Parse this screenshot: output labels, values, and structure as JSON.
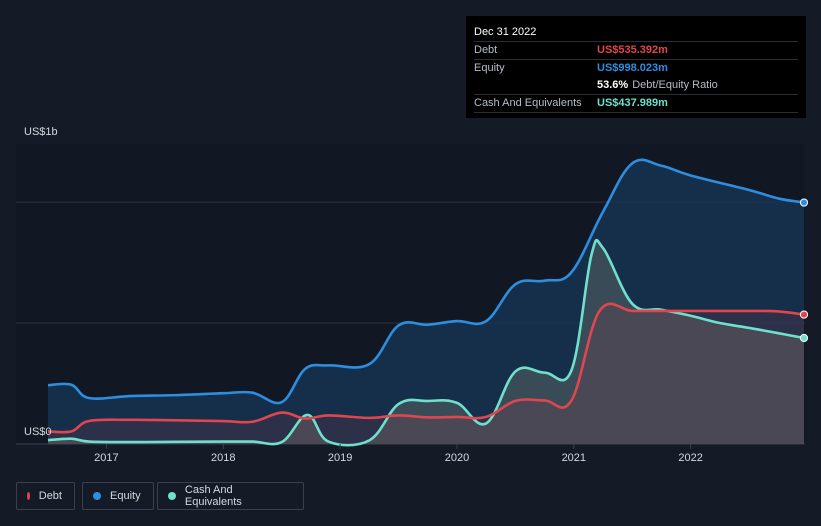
{
  "chart_data": {
    "type": "area",
    "ylabel_top": "US$1b",
    "ylabel_bottom": "US$0",
    "ylim": [
      0,
      1240
    ],
    "xlim": [
      2016.5,
      2022.97
    ],
    "x_ticks": [
      {
        "value": 2017.0,
        "label": "2017"
      },
      {
        "value": 2018.0,
        "label": "2018"
      },
      {
        "value": 2019.0,
        "label": "2019"
      },
      {
        "value": 2020.0,
        "label": "2020"
      },
      {
        "value": 2021.0,
        "label": "2021"
      },
      {
        "value": 2022.0,
        "label": "2022"
      }
    ],
    "gridlines": [
      500,
      1000
    ],
    "series": [
      {
        "name": "Equity",
        "color": "#2d8ee0",
        "fill": "#163250",
        "points": [
          [
            2016.5,
            243
          ],
          [
            2016.7,
            245
          ],
          [
            2016.85,
            190
          ],
          [
            2017.2,
            198
          ],
          [
            2017.6,
            202
          ],
          [
            2018.0,
            210
          ],
          [
            2018.25,
            212
          ],
          [
            2018.5,
            173
          ],
          [
            2018.7,
            310
          ],
          [
            2018.9,
            325
          ],
          [
            2019.25,
            330
          ],
          [
            2019.5,
            490
          ],
          [
            2019.75,
            493
          ],
          [
            2020.0,
            508
          ],
          [
            2020.25,
            508
          ],
          [
            2020.5,
            660
          ],
          [
            2020.75,
            675
          ],
          [
            2020.98,
            710
          ],
          [
            2021.25,
            960
          ],
          [
            2021.5,
            1160
          ],
          [
            2021.75,
            1150
          ],
          [
            2022.0,
            1110
          ],
          [
            2022.5,
            1050
          ],
          [
            2022.75,
            1015
          ],
          [
            2022.97,
            998
          ]
        ]
      },
      {
        "name": "Cash And Equivalents",
        "color": "#6ee0cc",
        "fill": "#3f5059",
        "points": [
          [
            2016.5,
            16
          ],
          [
            2016.7,
            22
          ],
          [
            2016.85,
            10
          ],
          [
            2017.2,
            8
          ],
          [
            2017.6,
            9
          ],
          [
            2018.0,
            10
          ],
          [
            2018.25,
            10
          ],
          [
            2018.5,
            8
          ],
          [
            2018.72,
            120
          ],
          [
            2018.9,
            10
          ],
          [
            2019.25,
            15
          ],
          [
            2019.5,
            165
          ],
          [
            2019.75,
            178
          ],
          [
            2020.0,
            170
          ],
          [
            2020.25,
            85
          ],
          [
            2020.5,
            300
          ],
          [
            2020.75,
            295
          ],
          [
            2020.98,
            305
          ],
          [
            2021.15,
            780
          ],
          [
            2021.25,
            810
          ],
          [
            2021.5,
            580
          ],
          [
            2021.75,
            555
          ],
          [
            2022.0,
            530
          ],
          [
            2022.25,
            500
          ],
          [
            2022.5,
            480
          ],
          [
            2022.75,
            458
          ],
          [
            2022.97,
            438
          ]
        ]
      },
      {
        "name": "Debt",
        "color": "#e0464f",
        "fill": "rgba(150,60,70,0.18)",
        "points": [
          [
            2016.5,
            52
          ],
          [
            2016.7,
            52
          ],
          [
            2016.85,
            95
          ],
          [
            2017.2,
            100
          ],
          [
            2017.6,
            98
          ],
          [
            2018.0,
            95
          ],
          [
            2018.25,
            92
          ],
          [
            2018.5,
            130
          ],
          [
            2018.7,
            105
          ],
          [
            2018.9,
            118
          ],
          [
            2019.25,
            108
          ],
          [
            2019.5,
            118
          ],
          [
            2019.75,
            110
          ],
          [
            2020.0,
            112
          ],
          [
            2020.25,
            112
          ],
          [
            2020.5,
            178
          ],
          [
            2020.75,
            180
          ],
          [
            2020.98,
            180
          ],
          [
            2021.22,
            550
          ],
          [
            2021.5,
            550
          ],
          [
            2021.75,
            550
          ],
          [
            2022.0,
            550
          ],
          [
            2022.5,
            550
          ],
          [
            2022.75,
            548
          ],
          [
            2022.97,
            535
          ]
        ]
      }
    ]
  },
  "tooltip": {
    "date": "Dec 31 2022",
    "debt_label": "Debt",
    "debt_value": "US$535.392m",
    "equity_label": "Equity",
    "equity_value": "US$998.023m",
    "ratio_pct": "53.6%",
    "ratio_label": "Debt/Equity Ratio",
    "cash_label": "Cash And Equivalents",
    "cash_value": "US$437.989m",
    "colors": {
      "debt": "#e0464f",
      "equity": "#2d8ee0",
      "cash": "#6ee0cc"
    }
  },
  "legend": [
    {
      "label": "Debt",
      "color": "#e0464f"
    },
    {
      "label": "Equity",
      "color": "#2d8ee0"
    },
    {
      "label": "Cash And Equivalents",
      "color": "#6ee0cc"
    }
  ]
}
